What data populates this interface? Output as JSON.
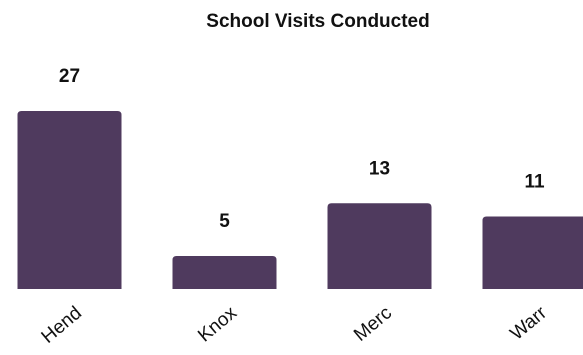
{
  "chart_data": {
    "type": "bar",
    "title": "School Visits Conducted",
    "categories": [
      "Hend",
      "Knox",
      "Merc",
      "Warr"
    ],
    "values": [
      27,
      5,
      13,
      11
    ],
    "xlabel": "",
    "ylabel": "",
    "ylim": [
      0,
      27
    ],
    "grid": false,
    "legend": "none",
    "data_labels": true,
    "bar_color": "#4f3a5e"
  }
}
